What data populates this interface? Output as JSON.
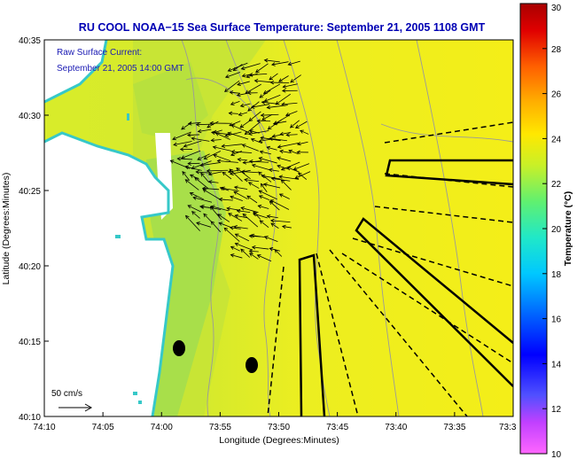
{
  "header": {
    "title": "RU COOL  NOAA−15  Sea Surface Temperature:  September 21, 2005 1108 GMT",
    "title_color": "#0000b4"
  },
  "map": {
    "current_label_1": "Raw Surface Current:",
    "current_label_2": "September 21, 2005 14:00 GMT",
    "scale_label": "50 cm/s",
    "xlabel": "Longitude (Degrees:Minutes)",
    "ylabel": "Latitude (Degrees:Minutes)",
    "x_ticks": [
      "74:10",
      "74:05",
      "74:00",
      "73:55",
      "73:50",
      "73:45",
      "73:40",
      "73:35",
      "73:3"
    ],
    "y_ticks": [
      "40:35",
      "40:30",
      "40:25",
      "40:20",
      "40:15",
      "40:10"
    ],
    "colors": {
      "land": "#ffffff",
      "sea_warm": "#f2ef1a",
      "sea_mid": "#cfe830",
      "sea_cool": "#7fd86a",
      "coast_cold": "#33c3c8"
    }
  },
  "colorbar": {
    "label": "Temperature (°C)",
    "ticks": [
      "30",
      "28",
      "26",
      "24",
      "22",
      "20",
      "18",
      "16",
      "14",
      "12",
      "10"
    ]
  }
}
